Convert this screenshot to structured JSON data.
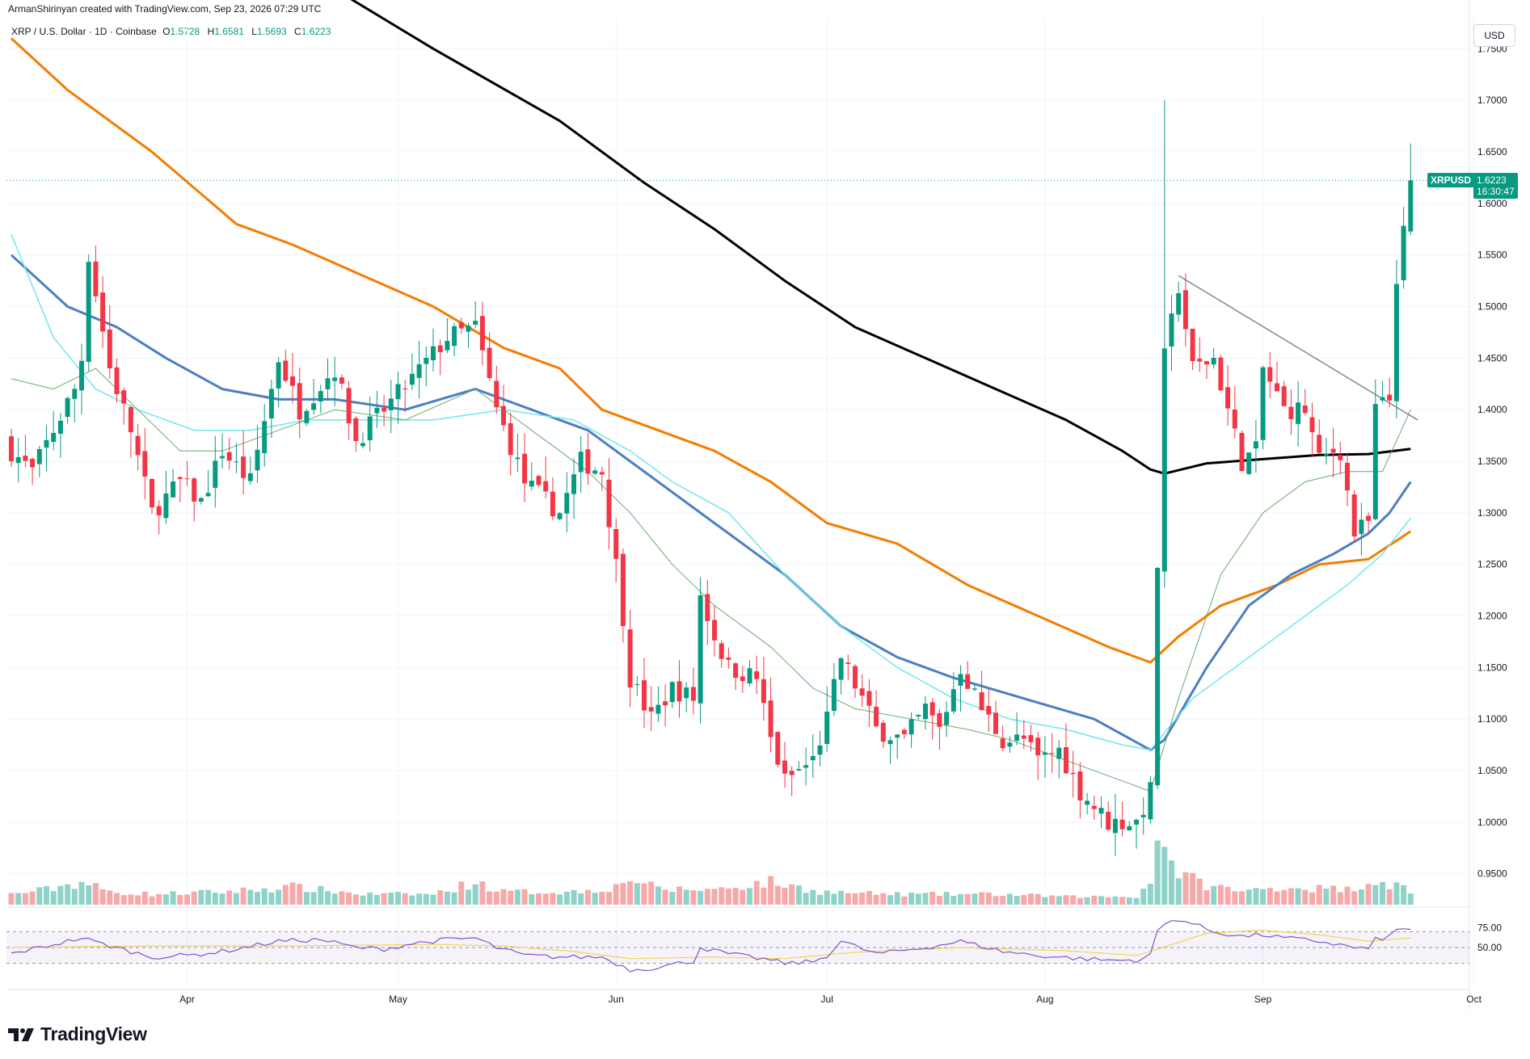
{
  "header": {
    "credit": "ArmanShirinyan created with TradingView.com, Sep 23, 2026 07:29 UTC",
    "symbol_line": "XRP / U.S. Dollar · 1D · Coinbase",
    "ohlc": {
      "o_key": "O",
      "o": "1.5728",
      "h_key": "H",
      "h": "1.6581",
      "l_key": "L",
      "l": "1.5693",
      "c_key": "C",
      "c": "1.6223"
    }
  },
  "axis": {
    "currency": "USD",
    "last_symbol": "XRPUSD",
    "last_price": "1.6223",
    "countdown": "16:30:47"
  },
  "brand": {
    "name": "TradingView"
  },
  "colors": {
    "up": "#089981",
    "down": "#f23645",
    "vol_up": "#8fd3c8",
    "vol_down": "#f7a9a9",
    "ma_black": "#000000",
    "ma_orange": "#f57c00",
    "ma_blue": "#4a7fc1",
    "ma_cyan": "#6ee7f0",
    "ma_green": "#6aa86a",
    "rsi_line": "#7e57c2",
    "rsi_ma": "#f7d354",
    "rsi_band": "#7e57c2"
  },
  "chart_data": {
    "type": "candlestick",
    "ylim": [
      0.92,
      1.78
    ],
    "y_ticks": [
      "1.7500",
      "1.7000",
      "1.6500",
      "1.6000",
      "1.5500",
      "1.5000",
      "1.4500",
      "1.4000",
      "1.3500",
      "1.3000",
      "1.2500",
      "1.2000",
      "1.1500",
      "1.1000",
      "1.0500",
      "1.0000",
      "0.9500"
    ],
    "x_ticks": [
      {
        "label": "Apr",
        "day": 25
      },
      {
        "label": "May",
        "day": 55
      },
      {
        "label": "Jun",
        "day": 86
      },
      {
        "label": "Jul",
        "day": 116
      },
      {
        "label": "Aug",
        "day": 147
      },
      {
        "label": "Sep",
        "day": 178
      },
      {
        "label": "Oct",
        "day": 208
      }
    ],
    "rsi_ticks": [
      "75.00",
      "50.00"
    ],
    "rsi_levels": {
      "upper": 70,
      "lower": 30,
      "mid": 50
    },
    "ohlc_keyframes": [
      [
        0,
        1.36
      ],
      [
        3,
        1.34
      ],
      [
        6,
        1.38
      ],
      [
        9,
        1.42
      ],
      [
        10,
        1.45
      ],
      [
        11,
        1.55
      ],
      [
        14,
        1.44
      ],
      [
        17,
        1.38
      ],
      [
        20,
        1.3
      ],
      [
        24,
        1.33
      ],
      [
        27,
        1.31
      ],
      [
        30,
        1.36
      ],
      [
        34,
        1.33
      ],
      [
        38,
        1.45
      ],
      [
        41,
        1.4
      ],
      [
        46,
        1.44
      ],
      [
        49,
        1.37
      ],
      [
        53,
        1.4
      ],
      [
        57,
        1.43
      ],
      [
        62,
        1.47
      ],
      [
        66,
        1.48
      ],
      [
        69,
        1.4
      ],
      [
        73,
        1.33
      ],
      [
        78,
        1.3
      ],
      [
        81,
        1.35
      ],
      [
        84,
        1.34
      ],
      [
        86,
        1.25
      ],
      [
        87,
        1.2
      ],
      [
        88,
        1.14
      ],
      [
        91,
        1.1
      ],
      [
        94,
        1.13
      ],
      [
        97,
        1.12
      ],
      [
        98,
        1.22
      ],
      [
        100,
        1.18
      ],
      [
        102,
        1.15
      ],
      [
        106,
        1.14
      ],
      [
        108,
        1.08
      ],
      [
        110,
        1.04
      ],
      [
        114,
        1.06
      ],
      [
        116,
        1.1
      ],
      [
        118,
        1.16
      ],
      [
        121,
        1.12
      ],
      [
        123,
        1.09
      ],
      [
        127,
        1.08
      ],
      [
        130,
        1.11
      ],
      [
        132,
        1.09
      ],
      [
        135,
        1.15
      ],
      [
        138,
        1.11
      ],
      [
        141,
        1.08
      ],
      [
        144,
        1.08
      ],
      [
        146,
        1.06
      ],
      [
        149,
        1.07
      ],
      [
        152,
        1.03
      ],
      [
        156,
        1.0
      ],
      [
        160,
        1.0
      ],
      [
        162,
        1.03
      ],
      [
        163,
        1.25
      ],
      [
        164,
        1.45
      ],
      [
        166,
        1.52
      ],
      [
        168,
        1.44
      ],
      [
        171,
        1.45
      ],
      [
        173,
        1.4
      ],
      [
        175,
        1.35
      ],
      [
        177,
        1.36
      ],
      [
        178,
        1.44
      ],
      [
        181,
        1.4
      ],
      [
        184,
        1.4
      ],
      [
        186,
        1.35
      ],
      [
        188,
        1.36
      ],
      [
        189,
        1.36
      ],
      [
        191,
        1.28
      ],
      [
        193,
        1.29
      ],
      [
        194,
        1.4
      ],
      [
        196,
        1.41
      ],
      [
        197,
        1.53
      ],
      [
        198,
        1.57
      ],
      [
        199,
        1.6223
      ]
    ],
    "volume_keyframes": [
      [
        0,
        0.3
      ],
      [
        5,
        0.5
      ],
      [
        10,
        0.8
      ],
      [
        14,
        0.4
      ],
      [
        20,
        0.3
      ],
      [
        30,
        0.4
      ],
      [
        40,
        0.6
      ],
      [
        50,
        0.3
      ],
      [
        60,
        0.3
      ],
      [
        66,
        0.8
      ],
      [
        70,
        0.4
      ],
      [
        80,
        0.4
      ],
      [
        86,
        0.6
      ],
      [
        88,
        1.0
      ],
      [
        92,
        0.5
      ],
      [
        100,
        0.5
      ],
      [
        108,
        0.8
      ],
      [
        115,
        0.4
      ],
      [
        125,
        0.3
      ],
      [
        140,
        0.3
      ],
      [
        150,
        0.2
      ],
      [
        160,
        0.2
      ],
      [
        162,
        0.8
      ],
      [
        163,
        2.5
      ],
      [
        164,
        3.0
      ],
      [
        165,
        1.5
      ],
      [
        167,
        1.0
      ],
      [
        170,
        0.7
      ],
      [
        175,
        0.4
      ],
      [
        180,
        0.6
      ],
      [
        190,
        0.5
      ],
      [
        194,
        0.9
      ],
      [
        196,
        0.7
      ],
      [
        198,
        0.6
      ],
      [
        199,
        0.3
      ]
    ],
    "rsi_keyframes": [
      [
        0,
        42
      ],
      [
        10,
        62
      ],
      [
        14,
        52
      ],
      [
        20,
        38
      ],
      [
        25,
        40
      ],
      [
        30,
        45
      ],
      [
        38,
        58
      ],
      [
        44,
        60
      ],
      [
        49,
        50
      ],
      [
        53,
        48
      ],
      [
        57,
        55
      ],
      [
        62,
        60
      ],
      [
        66,
        62
      ],
      [
        69,
        50
      ],
      [
        73,
        40
      ],
      [
        78,
        38
      ],
      [
        84,
        38
      ],
      [
        86,
        30
      ],
      [
        88,
        22
      ],
      [
        91,
        24
      ],
      [
        97,
        33
      ],
      [
        98,
        50
      ],
      [
        102,
        42
      ],
      [
        108,
        34
      ],
      [
        110,
        30
      ],
      [
        114,
        32
      ],
      [
        116,
        40
      ],
      [
        118,
        58
      ],
      [
        123,
        42
      ],
      [
        130,
        50
      ],
      [
        135,
        58
      ],
      [
        141,
        45
      ],
      [
        146,
        40
      ],
      [
        152,
        36
      ],
      [
        156,
        34
      ],
      [
        160,
        34
      ],
      [
        162,
        40
      ],
      [
        163,
        72
      ],
      [
        165,
        84
      ],
      [
        166,
        86
      ],
      [
        168,
        80
      ],
      [
        171,
        70
      ],
      [
        175,
        64
      ],
      [
        178,
        66
      ],
      [
        181,
        62
      ],
      [
        186,
        58
      ],
      [
        191,
        50
      ],
      [
        193,
        48
      ],
      [
        194,
        60
      ],
      [
        196,
        64
      ],
      [
        197,
        72
      ],
      [
        199,
        74
      ]
    ],
    "rsi_ma_keyframes": [
      [
        0,
        50
      ],
      [
        20,
        52
      ],
      [
        40,
        52
      ],
      [
        60,
        54
      ],
      [
        70,
        52
      ],
      [
        80,
        45
      ],
      [
        88,
        36
      ],
      [
        100,
        38
      ],
      [
        110,
        36
      ],
      [
        120,
        44
      ],
      [
        135,
        50
      ],
      [
        150,
        46
      ],
      [
        160,
        40
      ],
      [
        163,
        48
      ],
      [
        170,
        68
      ],
      [
        178,
        72
      ],
      [
        186,
        66
      ],
      [
        193,
        58
      ],
      [
        199,
        62
      ]
    ],
    "ma_lines": [
      {
        "color_key": "ma_black",
        "width": 3,
        "points": [
          [
            0,
            1.9
          ],
          [
            20,
            1.87
          ],
          [
            43,
            1.82
          ],
          [
            60,
            1.75
          ],
          [
            78,
            1.68
          ],
          [
            90,
            1.62
          ],
          [
            100,
            1.575
          ],
          [
            110,
            1.525
          ],
          [
            120,
            1.48
          ],
          [
            130,
            1.45
          ],
          [
            140,
            1.42
          ],
          [
            150,
            1.39
          ],
          [
            158,
            1.36
          ],
          [
            162,
            1.342
          ],
          [
            164,
            1.338
          ],
          [
            170,
            1.348
          ],
          [
            178,
            1.352
          ],
          [
            186,
            1.356
          ],
          [
            193,
            1.357
          ],
          [
            199,
            1.362
          ]
        ]
      },
      {
        "color_key": "ma_orange",
        "width": 3,
        "points": [
          [
            0,
            1.76
          ],
          [
            8,
            1.71
          ],
          [
            20,
            1.65
          ],
          [
            32,
            1.58
          ],
          [
            40,
            1.56
          ],
          [
            50,
            1.53
          ],
          [
            60,
            1.5
          ],
          [
            70,
            1.46
          ],
          [
            78,
            1.44
          ],
          [
            84,
            1.4
          ],
          [
            92,
            1.38
          ],
          [
            100,
            1.36
          ],
          [
            108,
            1.33
          ],
          [
            116,
            1.29
          ],
          [
            126,
            1.27
          ],
          [
            136,
            1.23
          ],
          [
            146,
            1.2
          ],
          [
            156,
            1.17
          ],
          [
            162,
            1.155
          ],
          [
            166,
            1.18
          ],
          [
            172,
            1.21
          ],
          [
            180,
            1.23
          ],
          [
            186,
            1.25
          ],
          [
            193,
            1.255
          ],
          [
            199,
            1.282
          ]
        ]
      },
      {
        "color_key": "ma_blue",
        "width": 3,
        "points": [
          [
            0,
            1.55
          ],
          [
            8,
            1.5
          ],
          [
            15,
            1.48
          ],
          [
            22,
            1.45
          ],
          [
            30,
            1.42
          ],
          [
            38,
            1.41
          ],
          [
            46,
            1.41
          ],
          [
            56,
            1.4
          ],
          [
            66,
            1.42
          ],
          [
            74,
            1.4
          ],
          [
            82,
            1.38
          ],
          [
            88,
            1.35
          ],
          [
            96,
            1.31
          ],
          [
            104,
            1.27
          ],
          [
            110,
            1.24
          ],
          [
            118,
            1.19
          ],
          [
            126,
            1.16
          ],
          [
            134,
            1.14
          ],
          [
            144,
            1.12
          ],
          [
            154,
            1.1
          ],
          [
            162,
            1.07
          ],
          [
            164,
            1.08
          ],
          [
            170,
            1.15
          ],
          [
            176,
            1.21
          ],
          [
            182,
            1.24
          ],
          [
            188,
            1.26
          ],
          [
            193,
            1.28
          ],
          [
            196,
            1.3
          ],
          [
            199,
            1.33
          ]
        ]
      },
      {
        "color_key": "ma_cyan",
        "width": 1.5,
        "points": [
          [
            0,
            1.57
          ],
          [
            6,
            1.47
          ],
          [
            12,
            1.42
          ],
          [
            18,
            1.4
          ],
          [
            26,
            1.38
          ],
          [
            34,
            1.38
          ],
          [
            42,
            1.39
          ],
          [
            50,
            1.39
          ],
          [
            60,
            1.39
          ],
          [
            70,
            1.4
          ],
          [
            80,
            1.39
          ],
          [
            88,
            1.36
          ],
          [
            94,
            1.33
          ],
          [
            102,
            1.3
          ],
          [
            110,
            1.24
          ],
          [
            118,
            1.19
          ],
          [
            126,
            1.15
          ],
          [
            134,
            1.12
          ],
          [
            142,
            1.1
          ],
          [
            150,
            1.09
          ],
          [
            158,
            1.075
          ],
          [
            162,
            1.07
          ],
          [
            168,
            1.12
          ],
          [
            176,
            1.16
          ],
          [
            184,
            1.2
          ],
          [
            190,
            1.23
          ],
          [
            195,
            1.26
          ],
          [
            199,
            1.295
          ]
        ]
      },
      {
        "color_key": "ma_green",
        "width": 1,
        "points": [
          [
            0,
            1.43
          ],
          [
            6,
            1.42
          ],
          [
            12,
            1.44
          ],
          [
            18,
            1.4
          ],
          [
            24,
            1.36
          ],
          [
            30,
            1.36
          ],
          [
            38,
            1.38
          ],
          [
            46,
            1.4
          ],
          [
            56,
            1.39
          ],
          [
            66,
            1.42
          ],
          [
            74,
            1.38
          ],
          [
            82,
            1.34
          ],
          [
            88,
            1.3
          ],
          [
            94,
            1.25
          ],
          [
            100,
            1.21
          ],
          [
            108,
            1.17
          ],
          [
            114,
            1.13
          ],
          [
            120,
            1.11
          ],
          [
            128,
            1.1
          ],
          [
            136,
            1.09
          ],
          [
            142,
            1.08
          ],
          [
            150,
            1.06
          ],
          [
            158,
            1.04
          ],
          [
            162,
            1.03
          ],
          [
            166,
            1.12
          ],
          [
            172,
            1.24
          ],
          [
            178,
            1.3
          ],
          [
            184,
            1.33
          ],
          [
            190,
            1.34
          ],
          [
            195,
            1.34
          ],
          [
            199,
            1.4
          ]
        ]
      }
    ],
    "trendline": {
      "start": [
        166,
        1.53
      ],
      "end": [
        200,
        1.39
      ]
    }
  }
}
